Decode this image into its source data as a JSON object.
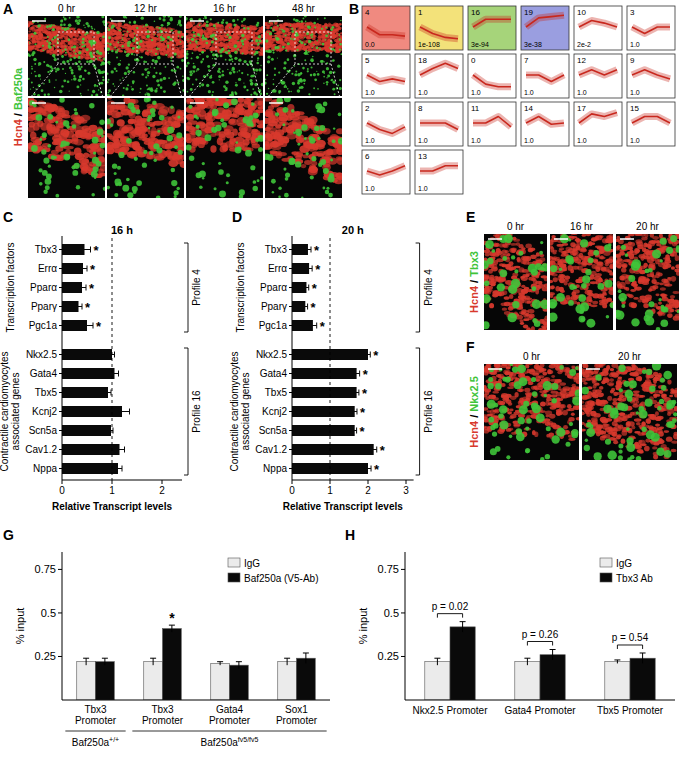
{
  "figure": {
    "A": {
      "letter": "A",
      "channels": [
        {
          "name": "Hcn4",
          "color": "#d8392d"
        },
        {
          "name": "Baf250a",
          "color": "#3fc43a"
        }
      ],
      "separator": " / ",
      "times": [
        "0 hr",
        "12 hr",
        "16 hr",
        "48 hr"
      ]
    },
    "B": {
      "letter": "B",
      "ylim": [
        -2,
        2
      ],
      "profiles": [
        {
          "id": "4",
          "p": "0.0",
          "color": "#f08a80",
          "values": [
            0,
            -1.2,
            -1.2,
            -1.4
          ]
        },
        {
          "id": "1",
          "p": "1e-108",
          "color": "#f3e27a",
          "values": [
            0,
            -1,
            -1.6,
            -1.8
          ]
        },
        {
          "id": "16",
          "p": "3e-94",
          "color": "#a6d47a",
          "values": [
            0,
            1.2,
            1.2,
            1.2
          ]
        },
        {
          "id": "19",
          "p": "3e-38",
          "color": "#9a9ee0",
          "values": [
            0,
            1.4,
            1.6,
            1.8
          ]
        },
        {
          "id": "10",
          "p": "2e-2",
          "color": "#ffffff",
          "values": [
            0,
            1,
            0.6,
            0
          ]
        },
        {
          "id": "3",
          "p": "1.0",
          "color": "#ffffff",
          "values": [
            0,
            -1,
            0,
            0
          ]
        },
        {
          "id": "5",
          "p": "1.0",
          "color": "#ffffff",
          "values": [
            0,
            -1,
            -0.6,
            -1
          ]
        },
        {
          "id": "18",
          "p": "1.0",
          "color": "#ffffff",
          "values": [
            0,
            1,
            1.8,
            1
          ]
        },
        {
          "id": "0",
          "p": "1.0",
          "color": "#ffffff",
          "values": [
            0,
            -1.4,
            -1.8,
            -1.8
          ]
        },
        {
          "id": "7",
          "p": "1.0",
          "color": "#ffffff",
          "values": [
            0,
            0,
            -1,
            0
          ]
        },
        {
          "id": "12",
          "p": "1.0",
          "color": "#ffffff",
          "values": [
            0,
            0.8,
            0,
            0.8
          ]
        },
        {
          "id": "9",
          "p": "1.0",
          "color": "#ffffff",
          "values": [
            0,
            0.8,
            0,
            -0.6
          ]
        },
        {
          "id": "2",
          "p": "1.0",
          "color": "#ffffff",
          "values": [
            0,
            -1,
            -1.6,
            -0.6
          ]
        },
        {
          "id": "8",
          "p": "1.0",
          "color": "#ffffff",
          "values": [
            0,
            0,
            0,
            -1
          ]
        },
        {
          "id": "11",
          "p": "1.0",
          "color": "#ffffff",
          "values": [
            0,
            0,
            1,
            -0.6
          ]
        },
        {
          "id": "14",
          "p": "1.0",
          "color": "#ffffff",
          "values": [
            0,
            1,
            -0.2,
            0
          ]
        },
        {
          "id": "17",
          "p": "1.0",
          "color": "#ffffff",
          "values": [
            0,
            1.4,
            1,
            1.6
          ]
        },
        {
          "id": "15",
          "p": "1.0",
          "color": "#ffffff",
          "values": [
            0,
            1,
            1,
            0
          ]
        },
        {
          "id": "6",
          "p": "1.0",
          "color": "#ffffff",
          "values": [
            0,
            -0.6,
            0,
            0.8
          ]
        },
        {
          "id": "13",
          "p": "1.0",
          "color": "#ffffff",
          "values": [
            0,
            0,
            0.8,
            0.8
          ]
        }
      ]
    },
    "E": {
      "letter": "E",
      "channels": [
        {
          "name": "Hcn4",
          "color": "#d8392d"
        },
        {
          "name": "Tbx3",
          "color": "#3fc43a"
        }
      ],
      "separator": " / ",
      "times": [
        "0 hr",
        "16 hr",
        "20 hr"
      ]
    },
    "F": {
      "letter": "F",
      "channels": [
        {
          "name": "Hcn4",
          "color": "#d8392d"
        },
        {
          "name": "Nkx2.5",
          "color": "#3fc43a"
        }
      ],
      "separator": " / ",
      "times": [
        "0 hr",
        "20 hr"
      ]
    }
  },
  "chart_data": [
    {
      "panel": "C",
      "type": "bar",
      "orientation": "horizontal",
      "title": "16 h",
      "x_label": "Relative Transcript levels",
      "categories": [
        "Tbx3",
        "Errα",
        "Pparα",
        "Pparγ",
        "Pgc1a",
        "Nkx2.5",
        "Gata4",
        "Tbx5",
        "Kcnj2",
        "Scn5a",
        "Cav1.2",
        "Nppa"
      ],
      "values": [
        0.45,
        0.42,
        0.4,
        0.33,
        0.5,
        1.0,
        1.05,
        0.92,
        1.2,
        0.98,
        1.15,
        1.12
      ],
      "errors": [
        0.12,
        0.08,
        0.08,
        0.07,
        0.12,
        0.05,
        0.08,
        0.06,
        0.15,
        0.04,
        0.1,
        0.08
      ],
      "significance": [
        "*",
        "*",
        "*",
        "*",
        "*",
        null,
        null,
        null,
        null,
        null,
        null,
        null
      ],
      "color": "#0a0a0a",
      "xlim": [
        0,
        2.4
      ],
      "xticks": [
        0,
        1,
        2
      ],
      "reference_line": 1,
      "groups": [
        {
          "lines": [
            "Transcription factors"
          ],
          "start": 0,
          "end": 4
        },
        {
          "lines": [
            "Contractile cardiomyocytes",
            "associated genes"
          ],
          "start": 5,
          "end": 11
        }
      ],
      "brackets": [
        {
          "label": "Profile 4",
          "start": 0,
          "end": 4
        },
        {
          "label": "Profile 16",
          "start": 5,
          "end": 11
        }
      ]
    },
    {
      "panel": "D",
      "type": "bar",
      "orientation": "horizontal",
      "title": "20 h",
      "x_label": "Relative Transcript levels",
      "categories": [
        "Tbx3",
        "Errα",
        "Pparα",
        "Pparγ",
        "Pgc1a",
        "Nkx2.5",
        "Gata4",
        "Tbx5",
        "Kcnj2",
        "Scn5a",
        "Cav1.2",
        "Nppa"
      ],
      "values": [
        0.42,
        0.45,
        0.38,
        0.35,
        0.55,
        2.0,
        1.7,
        1.7,
        1.65,
        1.65,
        2.15,
        2.0
      ],
      "errors": [
        0.08,
        0.08,
        0.06,
        0.06,
        0.1,
        0.06,
        0.08,
        0.06,
        0.06,
        0.05,
        0.08,
        0.08
      ],
      "significance": [
        "*",
        "*",
        "*",
        "*",
        "*",
        "*",
        "*",
        "*",
        "*",
        "*",
        "*",
        "*"
      ],
      "color": "#0a0a0a",
      "xlim": [
        0,
        3.2
      ],
      "xticks": [
        0,
        1,
        2,
        3
      ],
      "reference_line": 1,
      "groups": [
        {
          "lines": [
            "Transcription factors"
          ],
          "start": 0,
          "end": 4
        },
        {
          "lines": [
            "Contractile cardiomyocytes",
            "associated genes"
          ],
          "start": 5,
          "end": 11
        }
      ],
      "brackets": [
        {
          "label": "Profile 4",
          "start": 0,
          "end": 4
        },
        {
          "label": "Profile 16",
          "start": 5,
          "end": 11
        }
      ]
    },
    {
      "panel": "G",
      "type": "bar",
      "y_label": "% input",
      "legend": "top-right",
      "categories": [
        "Tbx3 Promoter",
        "Tbx3 Promoter",
        "Gata4 Promoter",
        "Sox1 Promoter"
      ],
      "series": [
        {
          "name": "IgG",
          "color": "#ebebeb",
          "values": [
            0.22,
            0.22,
            0.21,
            0.22
          ],
          "errors": [
            0.02,
            0.02,
            0.01,
            0.02
          ],
          "significance": [
            null,
            null,
            null,
            null
          ]
        },
        {
          "name": "Baf250a (V5-Ab)",
          "color": "#0a0a0a",
          "values": [
            0.22,
            0.41,
            0.2,
            0.24
          ],
          "errors": [
            0.02,
            0.02,
            0.02,
            0.03
          ],
          "significance": [
            null,
            "*",
            null,
            null
          ]
        }
      ],
      "ylim": [
        0,
        0.85
      ],
      "yticks": [
        0.25,
        0.5,
        0.75
      ],
      "groups": [
        {
          "label": {
            "base": "Baf250a",
            "sup": "+/+"
          },
          "start": 0,
          "end": 0
        },
        {
          "label": {
            "base": "Baf250a",
            "sup": "fv5/fv5"
          },
          "start": 1,
          "end": 3
        }
      ]
    },
    {
      "panel": "H",
      "type": "bar",
      "y_label": "% input",
      "legend": "top-right",
      "categories": [
        "Nkx2.5 Promoter",
        "Gata4 Promoter",
        "Tbx5 Promoter"
      ],
      "series": [
        {
          "name": "IgG",
          "color": "#ebebeb",
          "values": [
            0.22,
            0.22,
            0.22
          ],
          "errors": [
            0.02,
            0.02,
            0.01
          ],
          "significance": [
            null,
            null,
            null
          ]
        },
        {
          "name": "Tbx3 Ab",
          "color": "#0a0a0a",
          "values": [
            0.42,
            0.26,
            0.24
          ],
          "errors": [
            0.03,
            0.03,
            0.03
          ],
          "significance": [
            null,
            null,
            null
          ]
        }
      ],
      "ylim": [
        0,
        0.85
      ],
      "yticks": [
        0.25,
        0.5,
        0.75
      ],
      "comparisons": [
        "p = 0.02",
        "p = 0.26",
        "p = 0.54"
      ]
    }
  ]
}
